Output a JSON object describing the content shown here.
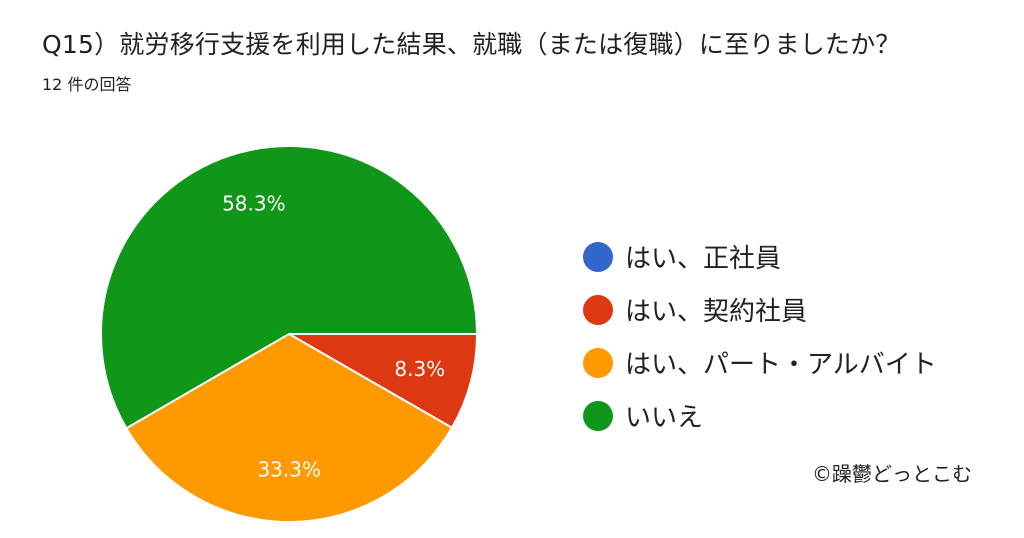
{
  "chart_data": {
    "type": "pie",
    "title": "Q15）就労移行支援を利用した結果、就職（または復職）に至りましたか？",
    "subtitle": "12 件の回答",
    "slices": [
      {
        "label": "はい、正社員",
        "value": 0,
        "percent_label": "",
        "color": "#3366cc"
      },
      {
        "label": "はい、契約社員",
        "value": 8.3,
        "percent_label": "8.3%",
        "color": "#dc3912"
      },
      {
        "label": "はい、パート・アルバイト",
        "value": 33.3,
        "percent_label": "33.3%",
        "color": "#ff9900"
      },
      {
        "label": "いいえ",
        "value": 58.3,
        "percent_label": "58.3%",
        "color": "#109618"
      }
    ],
    "legend_position": "right"
  },
  "watermark": "©躁鬱どっとこむ"
}
